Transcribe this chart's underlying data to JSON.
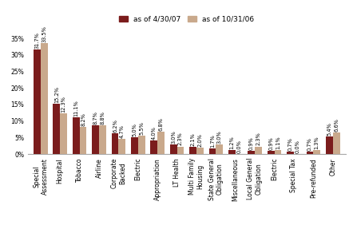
{
  "categories": [
    "Special\nAssessment",
    "Hospital",
    "Tobacco",
    "Airline",
    "Corporate\nBacked",
    "Electric",
    "Appropriation",
    "LT Health",
    "Multi Family\nHousing",
    "State General\nObligation",
    "Miscellaneous",
    "Local General\nObligation",
    "Electric",
    "Special Tax",
    "Pre-refunded",
    "Other"
  ],
  "series1_label": "as of 4/30/07",
  "series2_label": "as of 10/31/06",
  "series1_color": "#7B1C1C",
  "series2_color": "#C9A98C",
  "series1_values": [
    31.7,
    15.2,
    11.1,
    8.7,
    6.2,
    5.0,
    4.0,
    3.0,
    2.1,
    1.7,
    1.2,
    0.9,
    0.9,
    0.7,
    0.7,
    5.4
  ],
  "series2_values": [
    33.5,
    12.3,
    8.2,
    8.8,
    4.7,
    5.5,
    6.8,
    2.3,
    2.0,
    3.0,
    0.0,
    2.3,
    1.1,
    0.0,
    1.3,
    6.6
  ],
  "series1_labels": [
    "31.7%",
    "15.2%",
    "11.1%",
    "8.7%",
    "6.2%",
    "5.0%",
    "4.0%",
    "3.0%",
    "2.1%",
    "1.7%",
    "1.2%",
    "0.9%",
    "0.9%",
    "0.7%",
    "0.7%",
    "5.4%"
  ],
  "series2_labels": [
    "33.5%",
    "12.3%",
    "8.2%",
    "8.8%",
    "4.7%",
    "5.5%",
    "6.8%",
    "2.3%",
    "2.0%",
    "3.0%",
    "0.0%",
    "2.3%",
    "1.1%",
    "0.0%",
    "1.3%",
    "6.6%"
  ],
  "ylim": [
    0,
    38
  ],
  "yticks": [
    0,
    5,
    10,
    15,
    20,
    25,
    30,
    35
  ],
  "ytick_labels": [
    "0%",
    "5%",
    "10%",
    "15%",
    "20%",
    "25%",
    "30%",
    "35%"
  ],
  "background_color": "#FFFFFF",
  "tick_fontsize": 5.5,
  "label_fontsize": 4.8,
  "bar_width": 0.36,
  "legend_fontsize": 6.5
}
